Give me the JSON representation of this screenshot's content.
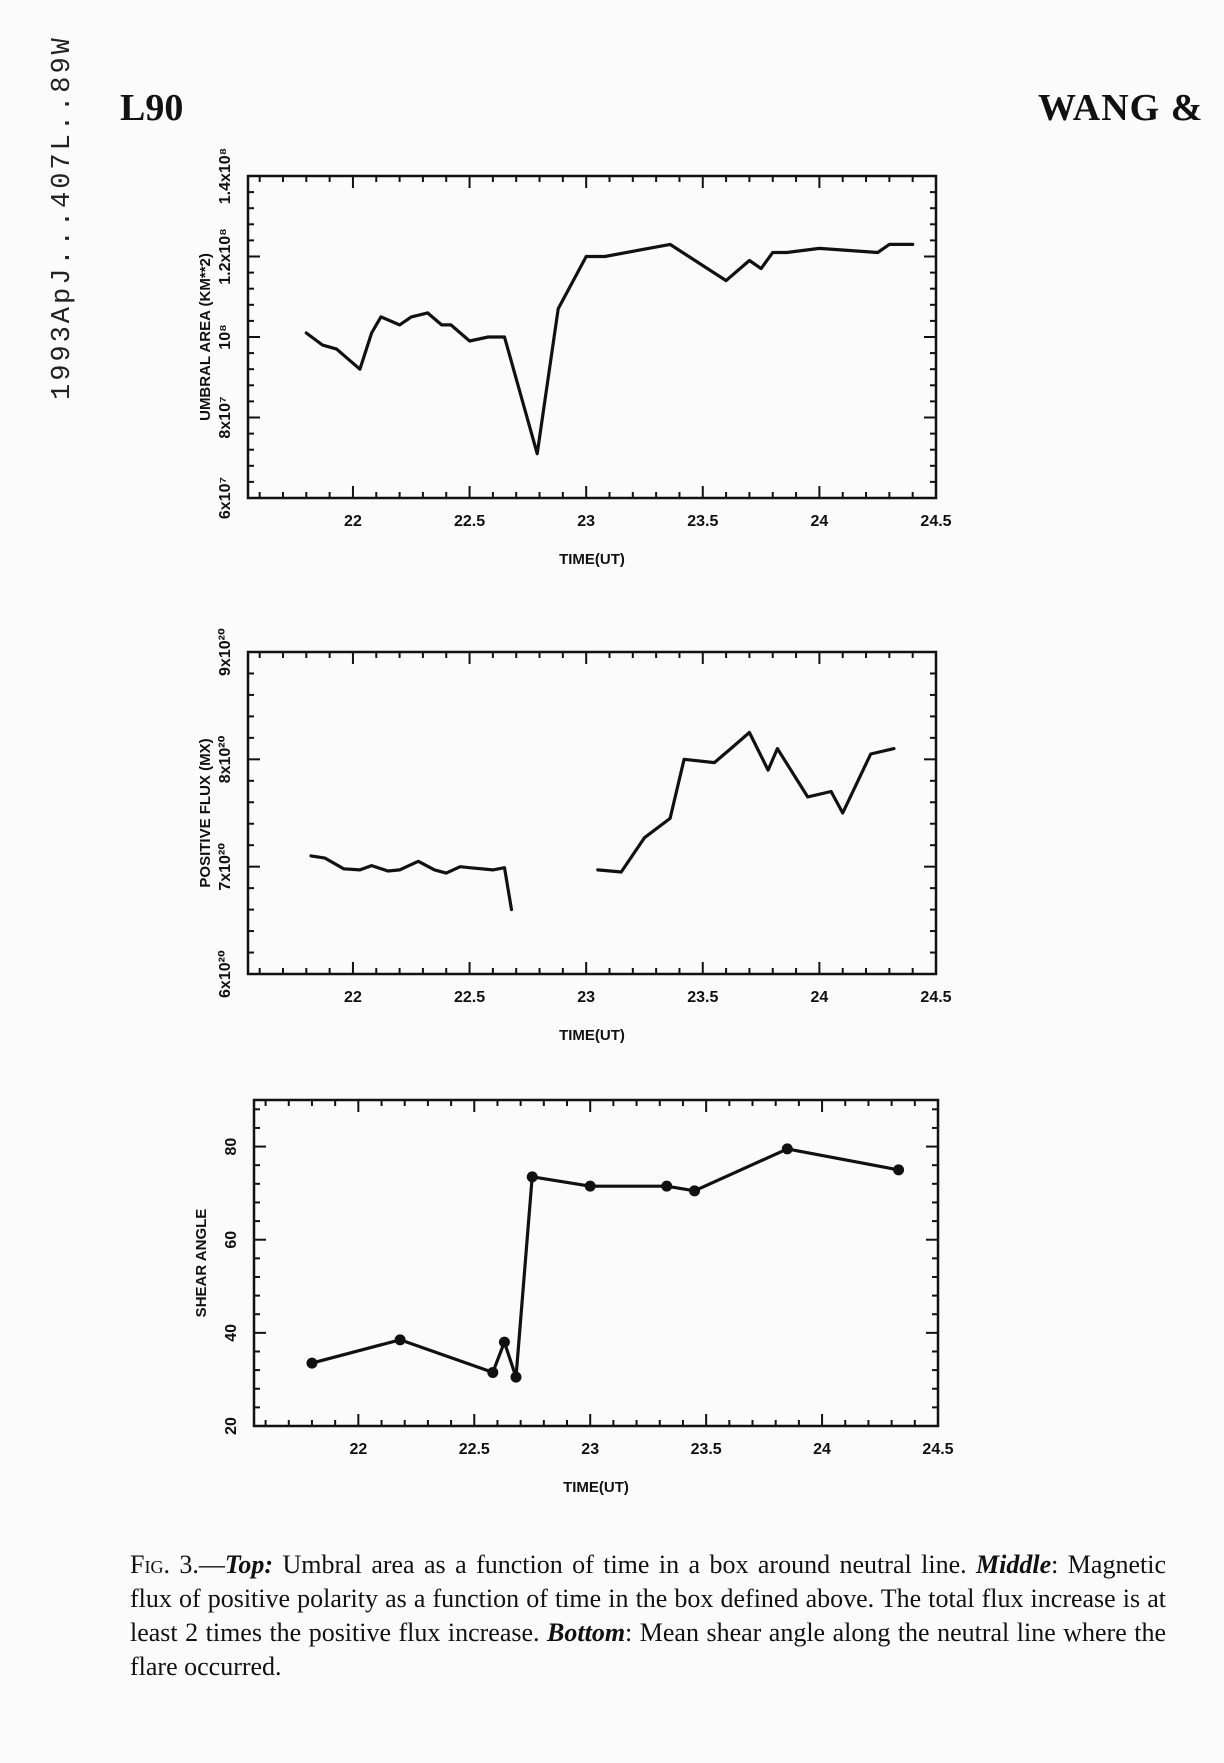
{
  "page": {
    "side_id": "1993ApJ...407L..89W",
    "page_number": "L90",
    "running_head": "WANG &",
    "caption": {
      "fig_label": "Fig. 3.",
      "dash": "—",
      "top_label": "Top:",
      "top_text": " Umbral area as a function of time in a box around neutral line. ",
      "middle_label": "Middle",
      "middle_text": ": Magnetic flux of positive polarity as a function of time in the box defined above. The total flux increase is at least 2 times the positive flux increase. ",
      "bottom_label": "Bottom",
      "bottom_text": ": Mean shear angle along the neutral line where the flare occurred."
    }
  },
  "chart_data": [
    {
      "id": "umbral",
      "type": "line",
      "xlabel": "TIME(UT)",
      "ylabel": "UMBRAL AREA (KM**2)",
      "xlim": [
        21.55,
        24.5
      ],
      "ylim": [
        60000000,
        140000000
      ],
      "xticks": [
        22,
        22.5,
        23,
        23.5,
        24,
        24.5
      ],
      "xtick_labels": [
        "22",
        "22.5",
        "23",
        "23.5",
        "24",
        "24.5"
      ],
      "yticks": [
        60000000,
        80000000,
        100000000,
        120000000,
        140000000
      ],
      "ytick_labels": [
        "6x10⁷",
        "8x10⁷",
        "10⁸",
        "1.2x10⁸",
        "1.4x10⁸"
      ],
      "markers": false,
      "segments": [
        {
          "x": [
            21.8,
            21.87,
            21.93,
            22.03,
            22.08,
            22.12,
            22.2,
            22.25,
            22.32,
            22.38,
            22.42,
            22.5,
            22.58,
            22.65,
            22.79,
            22.88,
            23.0,
            23.08,
            23.36,
            23.6,
            23.7,
            23.75,
            23.8,
            23.86,
            24.0,
            24.25,
            24.3,
            24.4
          ],
          "y": [
            101000000,
            98000000,
            97000000,
            92000000,
            101000000,
            105000000,
            103000000,
            105000000,
            106000000,
            103000000,
            103000000,
            99000000,
            100000000,
            100000000,
            71000000,
            107000000,
            120000000,
            120000000,
            123000000,
            114000000,
            119000000,
            117000000,
            121000000,
            121000000,
            122000000,
            121000000,
            123000000,
            123000000
          ]
        }
      ]
    },
    {
      "id": "flux",
      "type": "line",
      "xlabel": "TIME(UT)",
      "ylabel": "POSITIVE FLUX (MX)",
      "xlim": [
        21.55,
        24.5
      ],
      "ylim": [
        6e+20,
        9e+20
      ],
      "xticks": [
        22,
        22.5,
        23,
        23.5,
        24,
        24.5
      ],
      "xtick_labels": [
        "22",
        "22.5",
        "23",
        "23.5",
        "24",
        "24.5"
      ],
      "yticks": [
        6e+20,
        7e+20,
        8e+20,
        9e+20
      ],
      "ytick_labels": [
        "6x10²⁰",
        "7x10²⁰",
        "8x10²⁰",
        "9x10²⁰"
      ],
      "markers": false,
      "segments": [
        {
          "x": [
            21.82,
            21.88,
            21.96,
            22.03,
            22.08,
            22.15,
            22.2,
            22.28,
            22.35,
            22.4,
            22.46,
            22.5,
            22.6,
            22.65,
            22.68
          ],
          "y": [
            7.1e+20,
            7.08e+20,
            6.98e+20,
            6.97e+20,
            7.01e+20,
            6.96e+20,
            6.97e+20,
            7.05e+20,
            6.97e+20,
            6.94e+20,
            7e+20,
            6.99e+20,
            6.97e+20,
            6.99e+20,
            6.6e+20
          ]
        },
        {
          "x": [
            23.05,
            23.15,
            23.25,
            23.36,
            23.42,
            23.55,
            23.62,
            23.7,
            23.78,
            23.82,
            23.95,
            24.05,
            24.1,
            24.22,
            24.32
          ],
          "y": [
            6.97e+20,
            6.95e+20,
            7.27e+20,
            7.45e+20,
            8e+20,
            7.97e+20,
            8.1e+20,
            8.25e+20,
            7.9e+20,
            8.1e+20,
            7.65e+20,
            7.7e+20,
            7.5e+20,
            8.05e+20,
            8.1e+20
          ]
        }
      ]
    },
    {
      "id": "shear",
      "type": "line",
      "xlabel": "TIME(UT)",
      "ylabel": "SHEAR ANGLE",
      "xlim": [
        21.55,
        24.5
      ],
      "ylim": [
        20,
        90
      ],
      "xticks": [
        22,
        22.5,
        23,
        23.5,
        24,
        24.5
      ],
      "xtick_labels": [
        "22",
        "22.5",
        "23",
        "23.5",
        "24",
        "24.5"
      ],
      "yticks": [
        20,
        40,
        60,
        80
      ],
      "ytick_labels": [
        "20",
        "40",
        "60",
        "80"
      ],
      "markers": true,
      "segments": [
        {
          "x": [
            21.8,
            22.18,
            22.58,
            22.63,
            22.68,
            22.75,
            23.0,
            23.33,
            23.45,
            23.85,
            24.33
          ],
          "y": [
            33.5,
            38.5,
            31.5,
            38,
            30.5,
            73.5,
            71.5,
            71.5,
            70.5,
            79.5,
            75
          ]
        }
      ]
    }
  ]
}
